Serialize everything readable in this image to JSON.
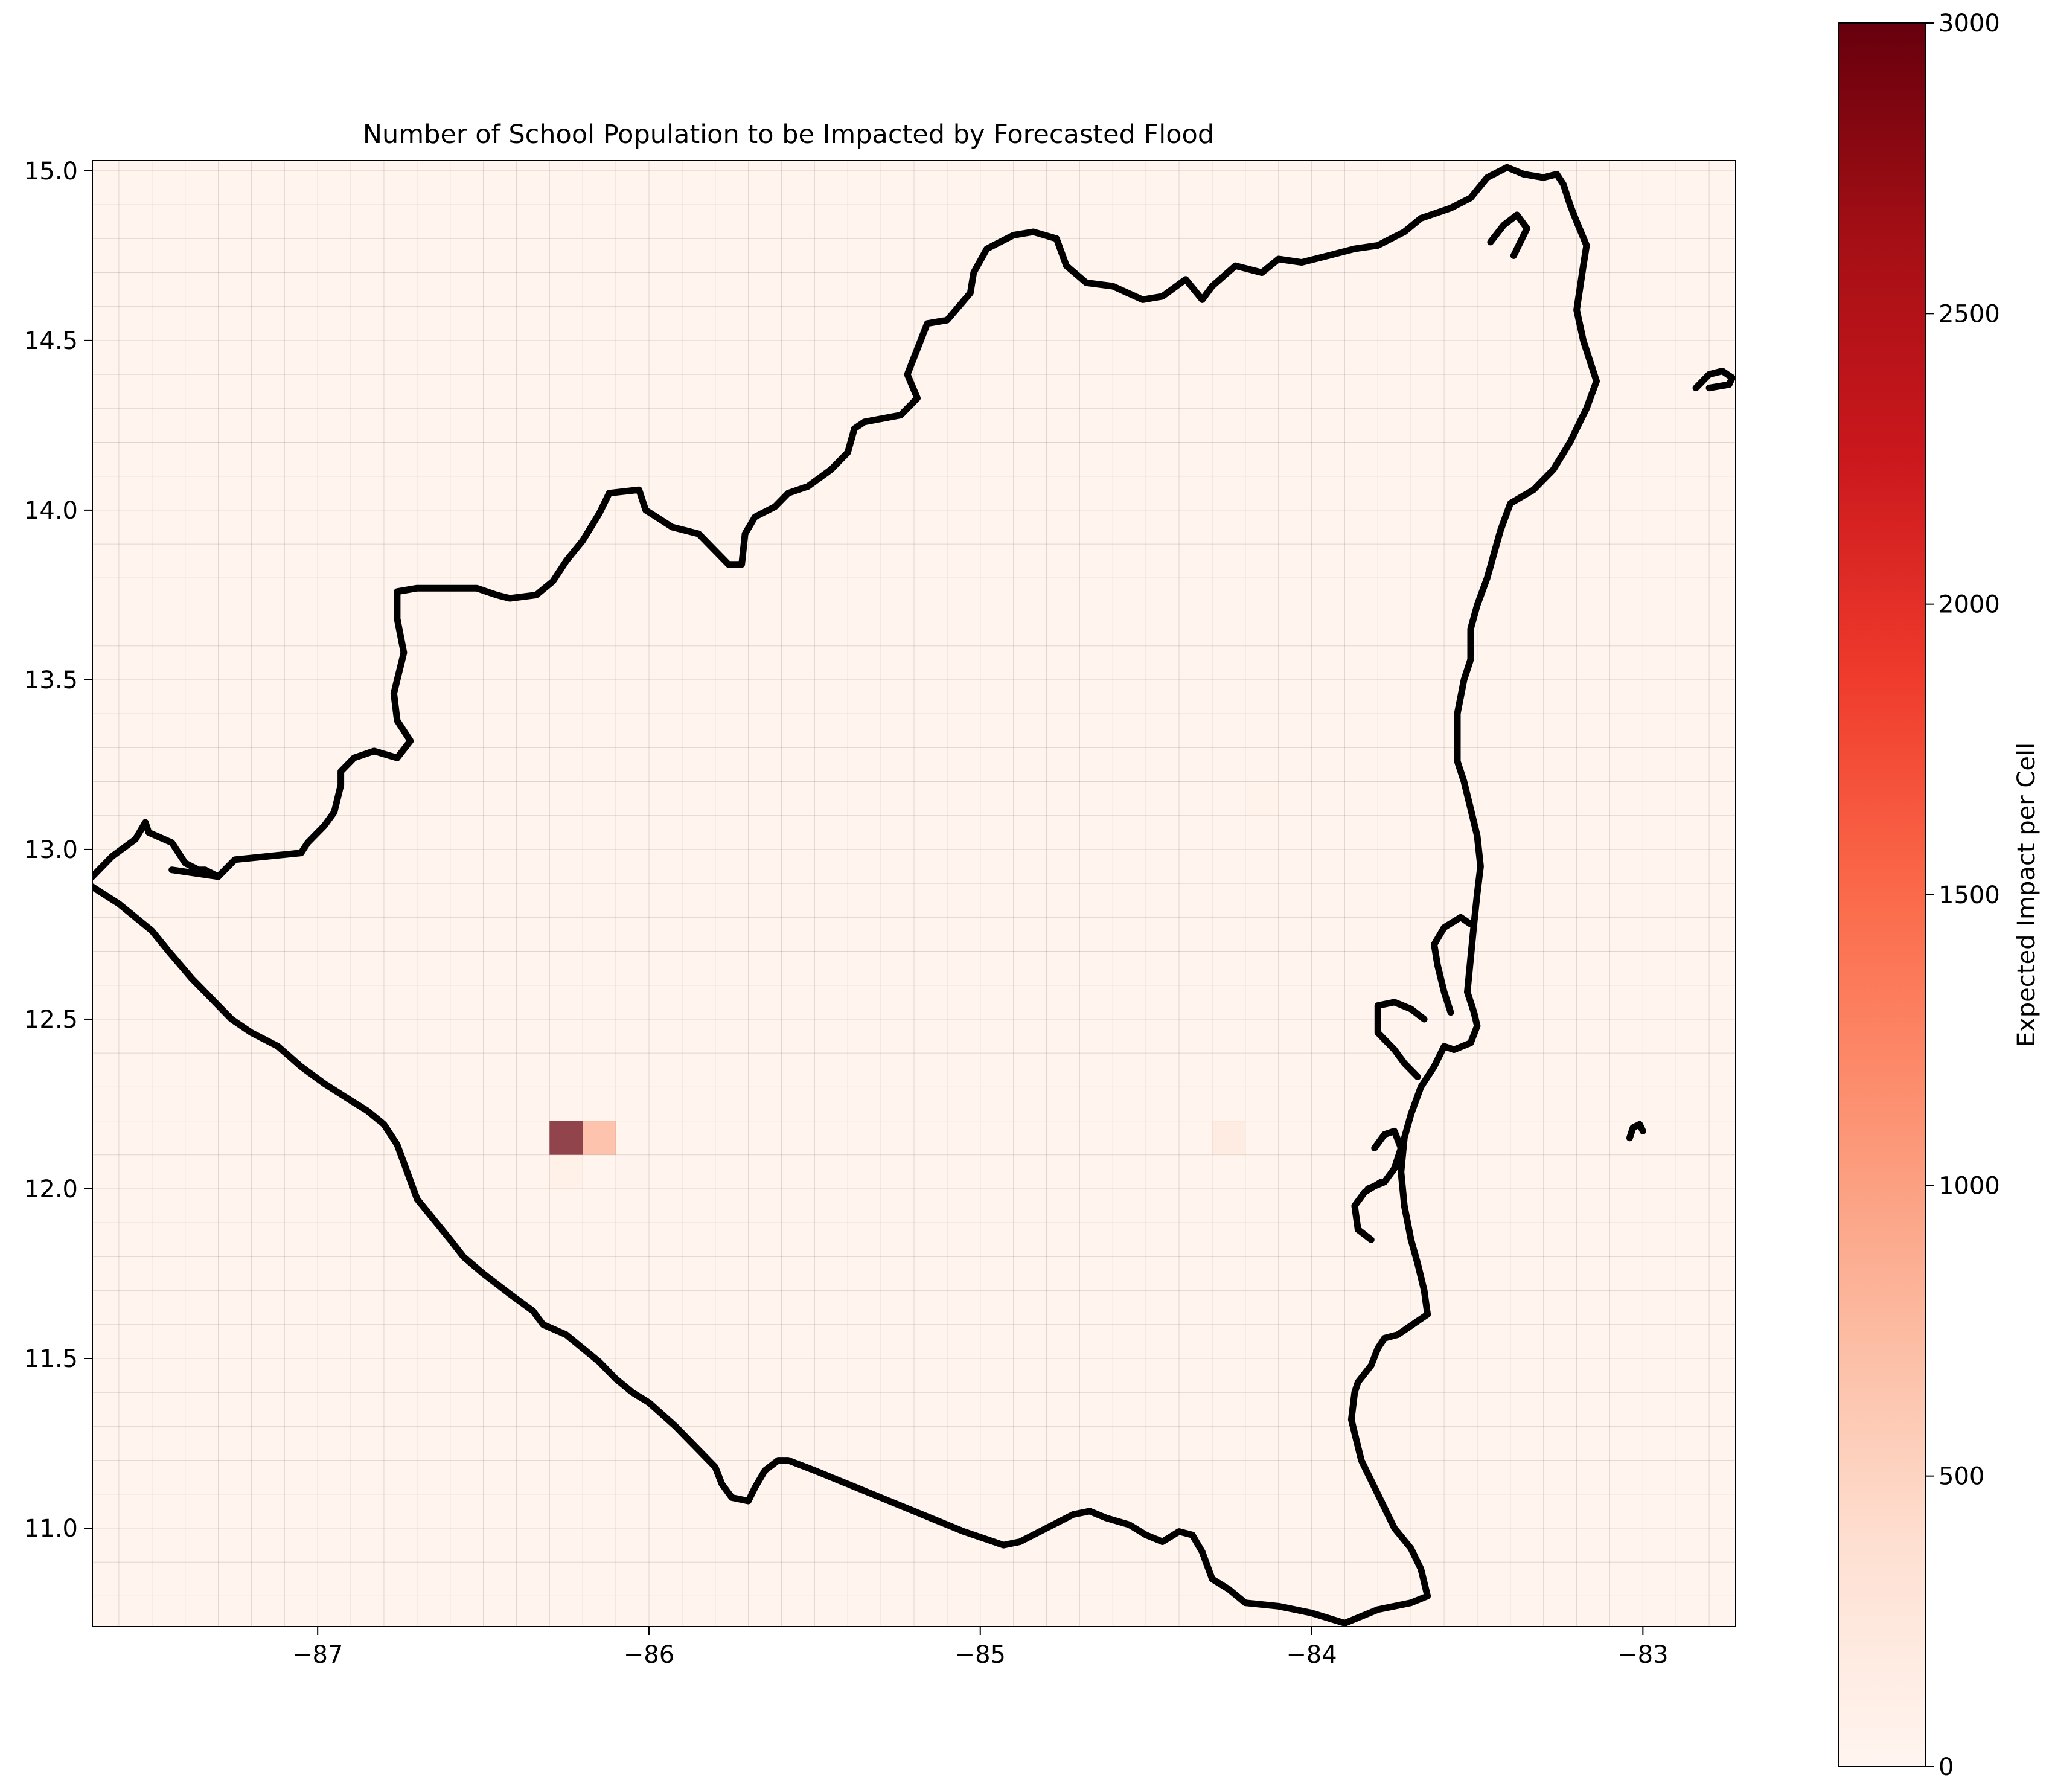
{
  "chart_data": {
    "type": "heatmap",
    "title": "Number of School Population to be Impacted by Forecasted Flood",
    "xlabel": "",
    "ylabel": "",
    "xlim": [
      -87.68,
      -82.72
    ],
    "ylim": [
      10.71,
      15.03
    ],
    "x_ticks": [
      "-87",
      "-86",
      "-85",
      "-84",
      "-83"
    ],
    "y_ticks": [
      "11.0",
      "11.5",
      "12.0",
      "12.5",
      "13.0",
      "13.5",
      "14.0",
      "14.5",
      "15.0"
    ],
    "grid": true,
    "grid_cell_size_deg": 0.1,
    "background_value": 20,
    "colormap": "Reds",
    "colorbar": {
      "label": "Expected Impact per Cell",
      "min": 0,
      "max": 3000,
      "ticks": [
        "0",
        "500",
        "1000",
        "1500",
        "2000",
        "2500",
        "3000"
      ],
      "placement": "right"
    },
    "cells": [
      {
        "lon": -86.25,
        "lat": 12.15,
        "value": 3000
      },
      {
        "lon": -86.15,
        "lat": 12.15,
        "value": 850
      },
      {
        "lon": -86.25,
        "lat": 12.05,
        "value": 120
      },
      {
        "lon": -84.25,
        "lat": 12.15,
        "value": 250
      },
      {
        "lon": -84.15,
        "lat": 13.15,
        "value": 60
      },
      {
        "lon": -86.05,
        "lat": 12.05,
        "value": 40
      }
    ],
    "overlay": "country boundary outline (black)",
    "outline_main": [
      [
        -87.68,
        12.92
      ],
      [
        -87.62,
        12.98
      ],
      [
        -87.55,
        13.03
      ],
      [
        -87.52,
        13.08
      ],
      [
        -87.51,
        13.05
      ],
      [
        -87.44,
        13.02
      ],
      [
        -87.4,
        12.96
      ],
      [
        -87.36,
        12.94
      ],
      [
        -87.34,
        12.94
      ],
      [
        -87.3,
        12.92
      ],
      [
        -87.25,
        12.97
      ],
      [
        -87.05,
        12.99
      ],
      [
        -87.03,
        13.02
      ],
      [
        -86.98,
        13.07
      ],
      [
        -86.95,
        13.11
      ],
      [
        -86.93,
        13.19
      ],
      [
        -86.93,
        13.23
      ],
      [
        -86.89,
        13.27
      ],
      [
        -86.83,
        13.29
      ],
      [
        -86.76,
        13.27
      ],
      [
        -86.72,
        13.32
      ],
      [
        -86.76,
        13.38
      ],
      [
        -86.77,
        13.46
      ],
      [
        -86.74,
        13.58
      ],
      [
        -86.76,
        13.68
      ],
      [
        -86.76,
        13.76
      ],
      [
        -86.7,
        13.77
      ],
      [
        -86.63,
        13.77
      ],
      [
        -86.52,
        13.77
      ],
      [
        -86.46,
        13.75
      ],
      [
        -86.42,
        13.74
      ],
      [
        -86.34,
        13.75
      ],
      [
        -86.29,
        13.79
      ],
      [
        -86.25,
        13.85
      ],
      [
        -86.2,
        13.91
      ],
      [
        -86.15,
        13.99
      ],
      [
        -86.12,
        14.05
      ],
      [
        -86.03,
        14.06
      ],
      [
        -86.01,
        14.0
      ],
      [
        -85.93,
        13.95
      ],
      [
        -85.85,
        13.93
      ],
      [
        -85.8,
        13.88
      ],
      [
        -85.76,
        13.84
      ],
      [
        -85.72,
        13.84
      ],
      [
        -85.71,
        13.93
      ],
      [
        -85.68,
        13.98
      ],
      [
        -85.62,
        14.01
      ],
      [
        -85.58,
        14.05
      ],
      [
        -85.52,
        14.07
      ],
      [
        -85.45,
        14.12
      ],
      [
        -85.4,
        14.17
      ],
      [
        -85.38,
        14.24
      ],
      [
        -85.35,
        14.26
      ],
      [
        -85.24,
        14.28
      ],
      [
        -85.19,
        14.33
      ],
      [
        -85.22,
        14.4
      ],
      [
        -85.2,
        14.45
      ],
      [
        -85.16,
        14.55
      ],
      [
        -85.1,
        14.56
      ],
      [
        -85.03,
        14.64
      ],
      [
        -85.02,
        14.7
      ],
      [
        -84.98,
        14.77
      ],
      [
        -84.9,
        14.81
      ],
      [
        -84.84,
        14.82
      ],
      [
        -84.77,
        14.8
      ],
      [
        -84.74,
        14.72
      ],
      [
        -84.68,
        14.67
      ],
      [
        -84.6,
        14.66
      ],
      [
        -84.51,
        14.62
      ],
      [
        -84.45,
        14.63
      ],
      [
        -84.38,
        14.68
      ],
      [
        -84.33,
        14.62
      ],
      [
        -84.3,
        14.66
      ],
      [
        -84.23,
        14.72
      ],
      [
        -84.15,
        14.7
      ],
      [
        -84.1,
        14.74
      ],
      [
        -84.03,
        14.73
      ],
      [
        -83.95,
        14.75
      ],
      [
        -83.87,
        14.77
      ],
      [
        -83.8,
        14.78
      ],
      [
        -83.72,
        14.82
      ],
      [
        -83.67,
        14.86
      ],
      [
        -83.58,
        14.89
      ],
      [
        -83.52,
        14.92
      ],
      [
        -83.47,
        14.98
      ],
      [
        -83.41,
        15.01
      ],
      [
        -83.36,
        14.99
      ],
      [
        -83.3,
        14.98
      ],
      [
        -83.26,
        14.99
      ],
      [
        -83.24,
        14.96
      ],
      [
        -83.22,
        14.9
      ],
      [
        -83.2,
        14.85
      ],
      [
        -83.17,
        14.78
      ],
      [
        -83.18,
        14.72
      ],
      [
        -83.2,
        14.59
      ],
      [
        -83.18,
        14.5
      ],
      [
        -83.14,
        14.38
      ],
      [
        -83.17,
        14.3
      ],
      [
        -83.22,
        14.2
      ],
      [
        -83.27,
        14.12
      ],
      [
        -83.33,
        14.06
      ],
      [
        -83.4,
        14.02
      ],
      [
        -83.43,
        13.94
      ],
      [
        -83.47,
        13.8
      ],
      [
        -83.5,
        13.72
      ],
      [
        -83.52,
        13.65
      ],
      [
        -83.52,
        13.56
      ],
      [
        -83.54,
        13.5
      ],
      [
        -83.56,
        13.4
      ],
      [
        -83.56,
        13.33
      ],
      [
        -83.56,
        13.26
      ],
      [
        -83.54,
        13.2
      ],
      [
        -83.52,
        13.12
      ],
      [
        -83.5,
        13.04
      ],
      [
        -83.49,
        12.95
      ],
      [
        -83.5,
        12.87
      ],
      [
        -83.51,
        12.78
      ],
      [
        -83.52,
        12.68
      ],
      [
        -83.53,
        12.58
      ],
      [
        -83.51,
        12.52
      ],
      [
        -83.5,
        12.48
      ],
      [
        -83.52,
        12.43
      ],
      [
        -83.57,
        12.41
      ],
      [
        -83.6,
        12.42
      ],
      [
        -83.63,
        12.36
      ],
      [
        -83.67,
        12.3
      ],
      [
        -83.7,
        12.22
      ],
      [
        -83.72,
        12.15
      ],
      [
        -83.73,
        12.05
      ],
      [
        -83.72,
        11.95
      ],
      [
        -83.7,
        11.85
      ],
      [
        -83.68,
        11.78
      ],
      [
        -83.66,
        11.7
      ],
      [
        -83.65,
        11.63
      ],
      [
        -83.71,
        11.59
      ],
      [
        -83.74,
        11.57
      ],
      [
        -83.78,
        11.56
      ],
      [
        -83.8,
        11.53
      ],
      [
        -83.82,
        11.48
      ],
      [
        -83.86,
        11.43
      ],
      [
        -83.87,
        11.4
      ],
      [
        -83.88,
        11.32
      ],
      [
        -83.85,
        11.2
      ],
      [
        -83.8,
        11.1
      ],
      [
        -83.75,
        11.0
      ],
      [
        -83.7,
        10.94
      ],
      [
        -83.67,
        10.88
      ],
      [
        -83.65,
        10.8
      ],
      [
        -83.7,
        10.78
      ],
      [
        -83.8,
        10.76
      ],
      [
        -83.9,
        10.72
      ],
      [
        -84.0,
        10.75
      ],
      [
        -84.05,
        10.76
      ],
      [
        -84.1,
        10.77
      ],
      [
        -84.2,
        10.78
      ],
      [
        -84.25,
        10.82
      ],
      [
        -84.3,
        10.85
      ],
      [
        -84.33,
        10.93
      ],
      [
        -84.36,
        10.98
      ],
      [
        -84.4,
        10.99
      ],
      [
        -84.45,
        10.96
      ],
      [
        -84.5,
        10.98
      ],
      [
        -84.55,
        11.01
      ],
      [
        -84.62,
        11.03
      ],
      [
        -84.67,
        11.05
      ],
      [
        -84.72,
        11.04
      ],
      [
        -84.8,
        11.0
      ],
      [
        -84.88,
        10.96
      ],
      [
        -84.93,
        10.95
      ],
      [
        -85.05,
        10.99
      ],
      [
        -85.2,
        11.05
      ],
      [
        -85.35,
        11.11
      ],
      [
        -85.5,
        11.17
      ],
      [
        -85.58,
        11.2
      ],
      [
        -85.61,
        11.2
      ],
      [
        -85.65,
        11.17
      ],
      [
        -85.68,
        11.12
      ],
      [
        -85.7,
        11.08
      ],
      [
        -85.75,
        11.09
      ],
      [
        -85.78,
        11.13
      ],
      [
        -85.8,
        11.18
      ],
      [
        -85.85,
        11.23
      ],
      [
        -85.92,
        11.3
      ],
      [
        -86.0,
        11.37
      ],
      [
        -86.05,
        11.4
      ],
      [
        -86.1,
        11.44
      ],
      [
        -86.15,
        11.49
      ],
      [
        -86.2,
        11.53
      ],
      [
        -86.25,
        11.57
      ],
      [
        -86.32,
        11.6
      ],
      [
        -86.35,
        11.64
      ],
      [
        -86.42,
        11.69
      ],
      [
        -86.5,
        11.75
      ],
      [
        -86.56,
        11.8
      ],
      [
        -86.6,
        11.85
      ],
      [
        -86.65,
        11.91
      ],
      [
        -86.7,
        11.97
      ],
      [
        -86.73,
        12.05
      ],
      [
        -86.76,
        12.13
      ],
      [
        -86.8,
        12.19
      ],
      [
        -86.85,
        12.23
      ],
      [
        -86.9,
        12.26
      ],
      [
        -86.98,
        12.31
      ],
      [
        -87.05,
        12.36
      ],
      [
        -87.12,
        12.42
      ],
      [
        -87.2,
        12.46
      ],
      [
        -87.26,
        12.5
      ],
      [
        -87.32,
        12.56
      ],
      [
        -87.38,
        12.62
      ],
      [
        -87.45,
        12.7
      ],
      [
        -87.5,
        12.76
      ],
      [
        -87.55,
        12.8
      ],
      [
        -87.6,
        12.84
      ],
      [
        -87.68,
        12.89
      ]
    ],
    "outline_extra": [
      [
        [
          -87.44,
          12.94
        ],
        [
          -87.3,
          12.92
        ]
      ],
      [
        [
          -83.46,
          14.79
        ],
        [
          -83.42,
          14.84
        ],
        [
          -83.38,
          14.87
        ],
        [
          -83.35,
          14.83
        ],
        [
          -83.37,
          14.79
        ],
        [
          -83.39,
          14.75
        ]
      ],
      [
        [
          -83.58,
          12.52
        ],
        [
          -83.6,
          12.58
        ],
        [
          -83.62,
          12.66
        ],
        [
          -83.63,
          12.72
        ],
        [
          -83.6,
          12.77
        ],
        [
          -83.55,
          12.8
        ],
        [
          -83.52,
          12.78
        ]
      ],
      [
        [
          -83.66,
          12.5
        ],
        [
          -83.7,
          12.53
        ],
        [
          -83.75,
          12.55
        ],
        [
          -83.8,
          12.54
        ],
        [
          -83.8,
          12.46
        ],
        [
          -83.75,
          12.41
        ],
        [
          -83.72,
          12.37
        ],
        [
          -83.68,
          12.33
        ]
      ],
      [
        [
          -83.83,
          12.0
        ],
        [
          -83.78,
          12.02
        ],
        [
          -83.75,
          12.06
        ],
        [
          -83.73,
          12.12
        ],
        [
          -83.75,
          12.17
        ],
        [
          -83.78,
          12.16
        ],
        [
          -83.81,
          12.12
        ]
      ],
      [
        [
          -83.82,
          11.85
        ],
        [
          -83.86,
          11.88
        ],
        [
          -83.87,
          11.95
        ],
        [
          -83.84,
          11.99
        ],
        [
          -83.79,
          12.02
        ]
      ],
      [
        [
          -83.04,
          12.15
        ],
        [
          -83.03,
          12.18
        ],
        [
          -83.01,
          12.19
        ],
        [
          -83.0,
          12.17
        ]
      ],
      [
        [
          -82.84,
          14.36
        ],
        [
          -82.8,
          14.4
        ],
        [
          -82.76,
          14.41
        ],
        [
          -82.73,
          14.39
        ],
        [
          -82.74,
          14.37
        ],
        [
          -82.8,
          14.36
        ]
      ]
    ]
  }
}
